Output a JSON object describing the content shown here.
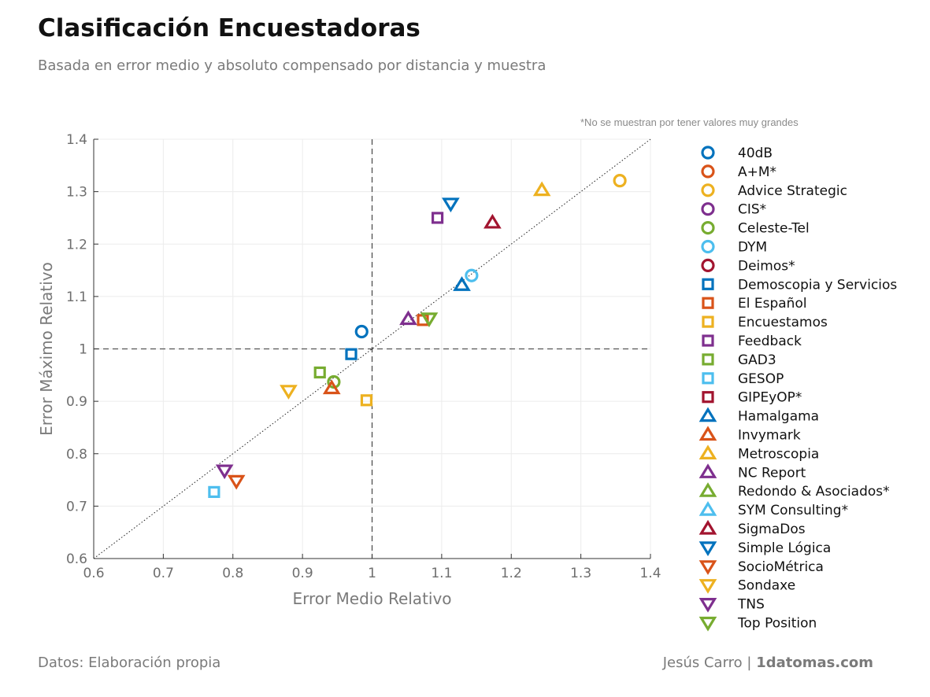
{
  "header": {
    "title": "Clasificación Encuestadoras",
    "subtitle": "Basada en error medio y absoluto compensado por distancia y muestra",
    "note": "*No se muestran por tener valores muy grandes"
  },
  "footer": {
    "source": "Datos: Elaboración propia",
    "author": "Jesús Carro |",
    "site": "1datomas.com"
  },
  "chart_data": {
    "type": "scatter",
    "xlabel": "Error Medio Relativo",
    "ylabel": "Error Máximo Relativo",
    "xlim": [
      0.6,
      1.4
    ],
    "ylim": [
      0.6,
      1.4
    ],
    "xticks": [
      "0.6",
      "0.7",
      "0.8",
      "0.9",
      "1",
      "1.1",
      "1.2",
      "1.3",
      "1.4"
    ],
    "yticks": [
      "0.6",
      "0.7",
      "0.8",
      "0.9",
      "1",
      "1.1",
      "1.2",
      "1.3",
      "1.4"
    ],
    "grid": true,
    "reference_lines": [
      {
        "type": "vertical",
        "x": 1,
        "style": "dashed"
      },
      {
        "type": "horizontal",
        "y": 1,
        "style": "dashed"
      },
      {
        "type": "diagonal",
        "from": [
          0.6,
          0.6
        ],
        "to": [
          1.4,
          1.4
        ],
        "style": "dotted"
      }
    ],
    "legend_position": "right",
    "series": [
      {
        "name": "40dB",
        "marker": "circle",
        "color": "#0072BD",
        "points": [
          [
            0.985,
            1.033
          ]
        ]
      },
      {
        "name": "A+M*",
        "marker": "circle",
        "color": "#D95319",
        "points": []
      },
      {
        "name": "Advice Strategic",
        "marker": "circle",
        "color": "#EDB120",
        "points": [
          [
            1.356,
            1.321
          ]
        ]
      },
      {
        "name": "CIS*",
        "marker": "circle",
        "color": "#7E2F8E",
        "points": []
      },
      {
        "name": "Celeste-Tel",
        "marker": "circle",
        "color": "#77AC30",
        "points": [
          [
            0.945,
            0.937
          ]
        ]
      },
      {
        "name": "DYM",
        "marker": "circle",
        "color": "#4DBEEE",
        "points": [
          [
            1.143,
            1.14
          ]
        ]
      },
      {
        "name": "Deimos*",
        "marker": "circle",
        "color": "#A2142F",
        "points": []
      },
      {
        "name": "Demoscopia y Servicios",
        "marker": "square",
        "color": "#0072BD",
        "points": [
          [
            0.97,
            0.99
          ]
        ]
      },
      {
        "name": "El Español",
        "marker": "square",
        "color": "#D95319",
        "points": [
          [
            1.073,
            1.055
          ]
        ]
      },
      {
        "name": "Encuestamos",
        "marker": "square",
        "color": "#EDB120",
        "points": [
          [
            0.992,
            0.902
          ]
        ]
      },
      {
        "name": "Feedback",
        "marker": "square",
        "color": "#7E2F8E",
        "points": [
          [
            1.094,
            1.25
          ]
        ]
      },
      {
        "name": "GAD3",
        "marker": "square",
        "color": "#77AC30",
        "points": [
          [
            0.925,
            0.955
          ]
        ]
      },
      {
        "name": "GESOP",
        "marker": "square",
        "color": "#4DBEEE",
        "points": [
          [
            0.773,
            0.727
          ]
        ]
      },
      {
        "name": "GIPEyOP*",
        "marker": "square",
        "color": "#A2142F",
        "points": []
      },
      {
        "name": "Hamalgama",
        "marker": "triangle-up",
        "color": "#0072BD",
        "points": [
          [
            1.129,
            1.122
          ]
        ]
      },
      {
        "name": "Invymark",
        "marker": "triangle-up",
        "color": "#D95319",
        "points": [
          [
            0.942,
            0.925
          ]
        ]
      },
      {
        "name": "Metroscopia",
        "marker": "triangle-up",
        "color": "#EDB120",
        "points": [
          [
            1.244,
            1.303
          ]
        ]
      },
      {
        "name": "NC Report",
        "marker": "triangle-up",
        "color": "#7E2F8E",
        "points": [
          [
            1.052,
            1.057
          ]
        ]
      },
      {
        "name": "Redondo & Asociados*",
        "marker": "triangle-up",
        "color": "#77AC30",
        "points": []
      },
      {
        "name": "SYM Consulting*",
        "marker": "triangle-up",
        "color": "#4DBEEE",
        "points": []
      },
      {
        "name": "SigmaDos",
        "marker": "triangle-up",
        "color": "#A2142F",
        "points": [
          [
            1.173,
            1.241
          ]
        ]
      },
      {
        "name": "Simple Lógica",
        "marker": "triangle-down",
        "color": "#0072BD",
        "points": [
          [
            1.113,
            1.277
          ]
        ]
      },
      {
        "name": "SocioMétrica",
        "marker": "triangle-down",
        "color": "#D95319",
        "points": [
          [
            0.805,
            0.748
          ]
        ]
      },
      {
        "name": "Sondaxe",
        "marker": "triangle-down",
        "color": "#EDB120",
        "points": [
          [
            0.88,
            0.92
          ]
        ]
      },
      {
        "name": "TNS",
        "marker": "triangle-down",
        "color": "#7E2F8E",
        "points": [
          [
            0.788,
            0.768
          ]
        ]
      },
      {
        "name": "Top Position",
        "marker": "triangle-down",
        "color": "#77AC30",
        "points": [
          [
            1.082,
            1.058
          ]
        ]
      }
    ]
  }
}
